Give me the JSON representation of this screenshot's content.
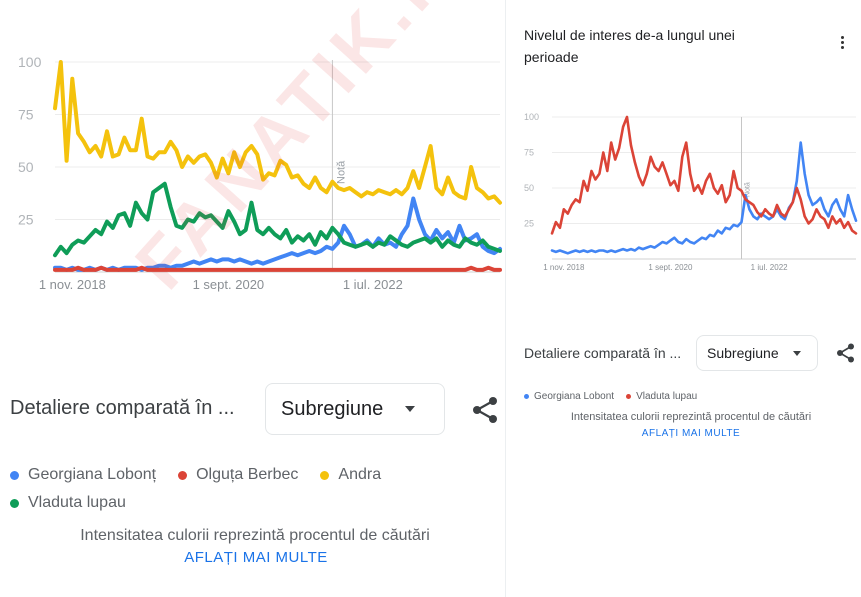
{
  "left": {
    "breakdown_label": "Detaliere comparată în ...",
    "dropdown_value": "Subregiune",
    "legend": [
      {
        "name": "Georgiana Lobonț",
        "color": "#4285f4"
      },
      {
        "name": "Olguța Berbec",
        "color": "#db4437"
      },
      {
        "name": "Andra",
        "color": "#f4c20d"
      },
      {
        "name": "Vladuta lupau",
        "color": "#0f9d58"
      }
    ],
    "info_text": "Intensitatea culorii reprezintă procentul de căutări",
    "learn_more": "AFLAȚI MAI MULTE"
  },
  "right": {
    "title": "Nivelul de interes de-a lungul unei perioade",
    "breakdown_label": "Detaliere comparată în ...",
    "dropdown_value": "Subregiune",
    "legend": [
      {
        "name": "Georgiana Lobont",
        "color": "#4285f4"
      },
      {
        "name": "Vladuta lupau",
        "color": "#db4437"
      }
    ],
    "info_text": "Intensitatea culorii reprezintă procentul de căutări",
    "learn_more": "AFLAȚI MAI MULTE"
  },
  "watermark": "FANATIK.RO",
  "chart_data": [
    {
      "type": "line",
      "title": "",
      "y_ticks": [
        "100",
        "75",
        "50",
        "25"
      ],
      "x_ticks": [
        "1 nov. 2018",
        "1 sept. 2020",
        "1 iul. 2022"
      ],
      "x_tick_index": [
        3,
        30,
        55
      ],
      "ylim": [
        0,
        100
      ],
      "note_label": "Notă",
      "note_index": 48,
      "series": [
        {
          "name": "Georgiana Lobonț",
          "color": "#4285f4",
          "values": [
            2,
            2,
            1,
            2,
            1,
            1,
            2,
            1,
            2,
            1,
            2,
            1,
            2,
            2,
            2,
            1,
            2,
            2,
            3,
            3,
            2,
            3,
            3,
            4,
            5,
            4,
            5,
            6,
            5,
            6,
            6,
            5,
            6,
            5,
            4,
            5,
            4,
            5,
            6,
            7,
            8,
            9,
            8,
            9,
            10,
            9,
            10,
            12,
            11,
            14,
            22,
            18,
            12,
            13,
            15,
            12,
            16,
            13,
            14,
            12,
            18,
            22,
            35,
            25,
            18,
            15,
            20,
            16,
            19,
            14,
            22,
            15,
            16,
            18,
            12,
            10,
            9,
            11
          ]
        },
        {
          "name": "Olguța Berbec",
          "color": "#db4437",
          "values": [
            1,
            1,
            1,
            1,
            2,
            1,
            1,
            1,
            2,
            1,
            1,
            1,
            1,
            1,
            1,
            2,
            1,
            1,
            1,
            1,
            1,
            1,
            1,
            1,
            1,
            1,
            1,
            1,
            1,
            1,
            1,
            1,
            1,
            1,
            1,
            1,
            1,
            1,
            1,
            1,
            1,
            1,
            1,
            1,
            1,
            1,
            1,
            1,
            1,
            1,
            1,
            1,
            1,
            1,
            1,
            1,
            1,
            1,
            1,
            1,
            1,
            1,
            1,
            1,
            1,
            1,
            1,
            1,
            1,
            1,
            1,
            1,
            2,
            1,
            1,
            2,
            1,
            1
          ]
        },
        {
          "name": "Andra",
          "color": "#f4c20d",
          "values": [
            78,
            100,
            53,
            92,
            66,
            62,
            57,
            60,
            55,
            67,
            55,
            56,
            64,
            58,
            58,
            73,
            55,
            54,
            57,
            57,
            62,
            58,
            50,
            55,
            52,
            55,
            56,
            52,
            45,
            54,
            47,
            57,
            50,
            57,
            60,
            56,
            44,
            47,
            46,
            53,
            51,
            45,
            46,
            42,
            40,
            45,
            40,
            38,
            43,
            40,
            39,
            40,
            38,
            36,
            38,
            37,
            39,
            38,
            37,
            39,
            37,
            40,
            48,
            40,
            50,
            60,
            40,
            37,
            45,
            38,
            36,
            35,
            50,
            40,
            38,
            35,
            36,
            33
          ]
        },
        {
          "name": "Vladuta lupau",
          "color": "#0f9d58",
          "values": [
            8,
            12,
            9,
            13,
            15,
            14,
            17,
            20,
            18,
            24,
            21,
            27,
            28,
            22,
            33,
            28,
            25,
            38,
            40,
            42,
            31,
            22,
            21,
            25,
            24,
            28,
            26,
            27,
            24,
            21,
            29,
            24,
            18,
            20,
            33,
            20,
            18,
            21,
            18,
            16,
            20,
            14,
            17,
            15,
            18,
            13,
            19,
            16,
            21,
            18,
            14,
            13,
            12,
            13,
            14,
            12,
            14,
            13,
            17,
            15,
            13,
            12,
            14,
            15,
            16,
            14,
            16,
            12,
            15,
            13,
            12,
            16,
            14,
            13,
            15,
            12,
            11,
            10
          ]
        }
      ]
    },
    {
      "type": "line",
      "title": "Nivelul de interes de-a lungul unei perioade",
      "y_ticks": [
        "100",
        "75",
        "50",
        "25"
      ],
      "x_ticks": [
        "1 nov. 2018",
        "1 sept. 2020",
        "1 iul. 2022"
      ],
      "x_tick_index": [
        3,
        30,
        55
      ],
      "ylim": [
        0,
        100
      ],
      "note_label": "Notă",
      "note_index": 48,
      "series": [
        {
          "name": "Georgiana Lobont",
          "color": "#4285f4",
          "values": [
            6,
            5,
            6,
            5,
            4,
            5,
            6,
            5,
            6,
            5,
            6,
            5,
            6,
            6,
            5,
            6,
            5,
            6,
            7,
            6,
            7,
            6,
            8,
            7,
            8,
            9,
            8,
            10,
            12,
            11,
            13,
            15,
            12,
            11,
            14,
            12,
            11,
            13,
            15,
            14,
            17,
            16,
            20,
            18,
            22,
            21,
            24,
            23,
            26,
            45,
            35,
            30,
            28,
            32,
            30,
            28,
            30,
            35,
            30,
            28,
            36,
            40,
            55,
            82,
            60,
            45,
            38,
            40,
            43,
            35,
            30,
            38,
            42,
            35,
            30,
            45,
            35,
            27
          ]
        },
        {
          "name": "Vladuta lupau",
          "color": "#db4437",
          "values": [
            18,
            26,
            22,
            35,
            32,
            38,
            42,
            40,
            55,
            48,
            62,
            56,
            60,
            75,
            62,
            82,
            70,
            78,
            93,
            100,
            80,
            68,
            58,
            52,
            60,
            72,
            65,
            62,
            68,
            60,
            52,
            55,
            48,
            72,
            82,
            60,
            48,
            52,
            46,
            55,
            60,
            50,
            46,
            52,
            40,
            45,
            62,
            50,
            48,
            42,
            40,
            38,
            33,
            30,
            35,
            32,
            30,
            38,
            32,
            30,
            35,
            40,
            50,
            42,
            30,
            25,
            28,
            35,
            30,
            28,
            22,
            30,
            25,
            28,
            22,
            26,
            20,
            18
          ]
        }
      ]
    }
  ]
}
